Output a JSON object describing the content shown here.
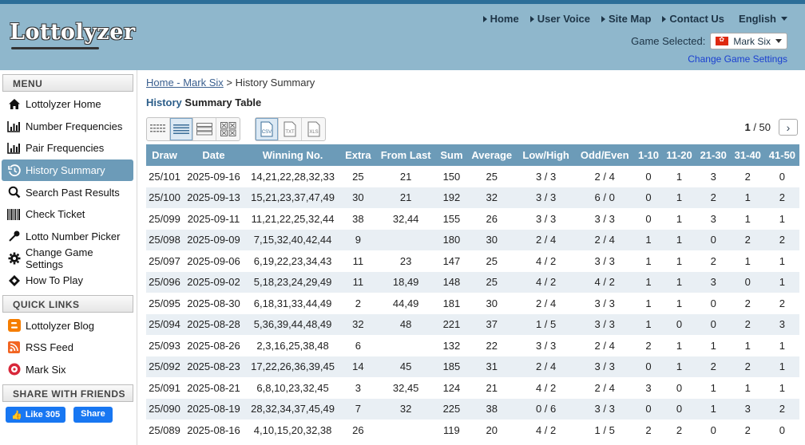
{
  "header": {
    "logo": "Lottolyzer",
    "nav": [
      {
        "label": "Home"
      },
      {
        "label": "User Voice"
      },
      {
        "label": "Site Map"
      },
      {
        "label": "Contact Us"
      }
    ],
    "language": "English",
    "game_selected_label": "Game Selected:",
    "game_name": "Mark Six",
    "change_settings": "Change Game Settings"
  },
  "sidebar": {
    "menu_title": "MENU",
    "menu": [
      {
        "label": "Lottolyzer Home",
        "icon": "home-icon"
      },
      {
        "label": "Number Frequencies",
        "icon": "bar-chart-icon"
      },
      {
        "label": "Pair Frequencies",
        "icon": "bar-chart-icon"
      },
      {
        "label": "History Summary",
        "icon": "history-icon"
      },
      {
        "label": "Search Past Results",
        "icon": "search-icon"
      },
      {
        "label": "Check Ticket",
        "icon": "barcode-icon"
      },
      {
        "label": "Lotto Number Picker",
        "icon": "picker-icon"
      },
      {
        "label": "Change Game Settings",
        "icon": "gear-icon"
      },
      {
        "label": "How To Play",
        "icon": "ticket-icon"
      }
    ],
    "quick_title": "QUICK LINKS",
    "quick": [
      {
        "label": "Lottolyzer Blog",
        "icon": "blogger-icon"
      },
      {
        "label": "RSS Feed",
        "icon": "rss-icon"
      },
      {
        "label": "Mark Six",
        "icon": "lottery-ball-icon"
      }
    ],
    "share_title": "SHARE WITH FRIENDS",
    "like_label": "Like 305",
    "share_label": "Share"
  },
  "main": {
    "breadcrumb_link": "Home - Mark Six",
    "breadcrumb_sep": " > ",
    "breadcrumb_current": "History Summary",
    "title_highlight": "History",
    "title_rest": " Summary Table",
    "page_current": "1",
    "page_total": " / 50"
  },
  "table": {
    "headers": [
      "Draw",
      "Date",
      "Winning No.",
      "Extra",
      "From Last",
      "Sum",
      "Average",
      "Low/High",
      "Odd/Even",
      "1-10",
      "11-20",
      "21-30",
      "31-40",
      "41-50"
    ],
    "rows": [
      [
        "25/101",
        "2025-09-16",
        "14,21,22,28,32,33",
        "25",
        "21",
        "150",
        "25",
        "3 / 3",
        "2 / 4",
        "0",
        "1",
        "3",
        "2",
        "0"
      ],
      [
        "25/100",
        "2025-09-13",
        "15,21,23,37,47,49",
        "30",
        "21",
        "192",
        "32",
        "3 / 3",
        "6 / 0",
        "0",
        "1",
        "2",
        "1",
        "2"
      ],
      [
        "25/099",
        "2025-09-11",
        "11,21,22,25,32,44",
        "38",
        "32,44",
        "155",
        "26",
        "3 / 3",
        "3 / 3",
        "0",
        "1",
        "3",
        "1",
        "1"
      ],
      [
        "25/098",
        "2025-09-09",
        "7,15,32,40,42,44",
        "9",
        "",
        "180",
        "30",
        "2 / 4",
        "2 / 4",
        "1",
        "1",
        "0",
        "2",
        "2"
      ],
      [
        "25/097",
        "2025-09-06",
        "6,19,22,23,34,43",
        "11",
        "23",
        "147",
        "25",
        "4 / 2",
        "3 / 3",
        "1",
        "1",
        "2",
        "1",
        "1"
      ],
      [
        "25/096",
        "2025-09-02",
        "5,18,23,24,29,49",
        "11",
        "18,49",
        "148",
        "25",
        "4 / 2",
        "4 / 2",
        "1",
        "1",
        "3",
        "0",
        "1"
      ],
      [
        "25/095",
        "2025-08-30",
        "6,18,31,33,44,49",
        "2",
        "44,49",
        "181",
        "30",
        "2 / 4",
        "3 / 3",
        "1",
        "1",
        "0",
        "2",
        "2"
      ],
      [
        "25/094",
        "2025-08-28",
        "5,36,39,44,48,49",
        "32",
        "48",
        "221",
        "37",
        "1 / 5",
        "3 / 3",
        "1",
        "0",
        "0",
        "2",
        "3"
      ],
      [
        "25/093",
        "2025-08-26",
        "2,3,16,25,38,48",
        "6",
        "",
        "132",
        "22",
        "3 / 3",
        "2 / 4",
        "2",
        "1",
        "1",
        "1",
        "1"
      ],
      [
        "25/092",
        "2025-08-23",
        "17,22,26,36,39,45",
        "14",
        "45",
        "185",
        "31",
        "2 / 4",
        "3 / 3",
        "0",
        "1",
        "2",
        "2",
        "1"
      ],
      [
        "25/091",
        "2025-08-21",
        "6,8,10,23,32,45",
        "3",
        "32,45",
        "124",
        "21",
        "4 / 2",
        "2 / 4",
        "3",
        "0",
        "1",
        "1",
        "1"
      ],
      [
        "25/090",
        "2025-08-19",
        "28,32,34,37,45,49",
        "7",
        "32",
        "225",
        "38",
        "0 / 6",
        "3 / 3",
        "0",
        "0",
        "1",
        "3",
        "2"
      ],
      [
        "25/089",
        "2025-08-16",
        "4,10,15,20,32,38",
        "26",
        "",
        "119",
        "20",
        "4 / 2",
        "1 / 5",
        "2",
        "2",
        "0",
        "2",
        "0"
      ]
    ]
  },
  "colors": {
    "header_bg": "#8fb7cc",
    "accent": "#6c9bb8",
    "row_alt": "#e9eff4"
  }
}
